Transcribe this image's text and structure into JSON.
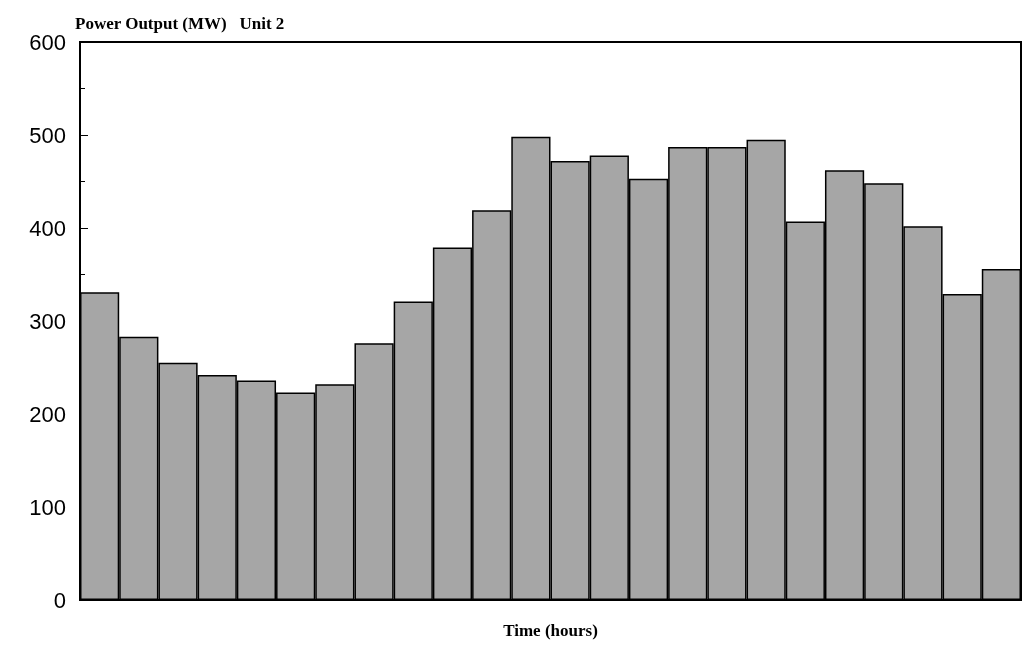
{
  "chart_data": {
    "type": "bar",
    "title": "Power Output (MW)   Unit 2",
    "xlabel": "Time (hours)",
    "categories": [
      null,
      null,
      null,
      null,
      null,
      null,
      null,
      null,
      null,
      null,
      null,
      null,
      null,
      null,
      null,
      null,
      null,
      null,
      null,
      null,
      null,
      null,
      null,
      null
    ],
    "values": [
      331,
      283,
      255,
      242,
      236,
      223,
      232,
      276,
      321,
      379,
      419,
      498,
      472,
      478,
      453,
      487,
      487,
      495,
      407,
      462,
      448,
      402,
      329,
      356
    ],
    "color": "#a6a6a6",
    "ylim": [
      0,
      600
    ],
    "yticks": [
      0,
      100,
      200,
      300,
      400,
      500,
      600
    ],
    "grid": false,
    "tick_labels": "y"
  }
}
